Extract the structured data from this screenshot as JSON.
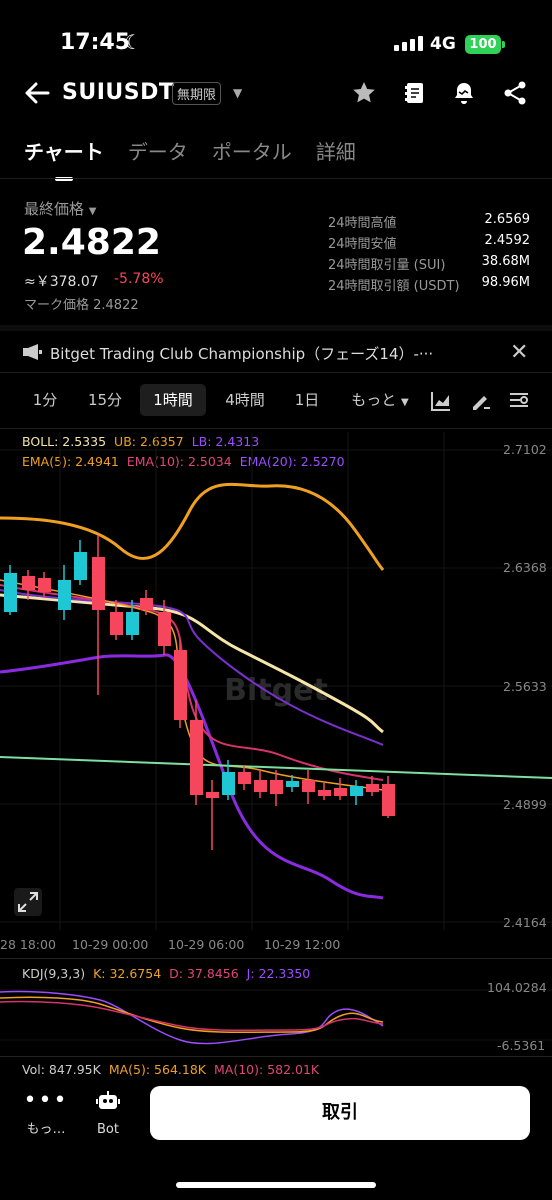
{
  "status": {
    "time": "17:45",
    "network": "4G",
    "battery": "100"
  },
  "header": {
    "symbol": "SUIUSDT",
    "contract_tag": "無期限"
  },
  "tabs": [
    "チャート",
    "データ",
    "ポータル",
    "詳細"
  ],
  "price": {
    "label": "最終価格",
    "last": "2.4822",
    "approx": "≈￥378.07",
    "change": "-5.78%",
    "mark": "マーク価格 2.4822"
  },
  "stats": [
    {
      "k": "24時間高値",
      "v": "2.6569"
    },
    {
      "k": "24時間安値",
      "v": "2.4592"
    },
    {
      "k": "24時間取引量 (SUI)",
      "v": "38.68M"
    },
    {
      "k": "24時間取引額 (USDT)",
      "v": "98.96M"
    }
  ],
  "announcement": "Bitget Trading Club Championship（フェーズ14）-···",
  "intervals": [
    "1分",
    "15分",
    "1時間",
    "4時間",
    "1日",
    "もっと"
  ],
  "active_interval": "1時間",
  "legend": {
    "boll": "BOLL: 2.5335",
    "ub": "UB: 2.6357",
    "lb": "LB: 2.4313",
    "ema5": "EMA(5): 2.4941",
    "ema10": "EMA(10): 2.5034",
    "ema20": "EMA(20): 2.5270",
    "kdj": "KDJ(9,3,3)",
    "k": "K: 32.6754",
    "d": "D: 37.8456",
    "j": "J: 22.3350",
    "vol": "Vol: 847.95K",
    "ma5": "MA(5): 564.18K",
    "ma10": "MA(10): 582.01K"
  },
  "axis": {
    "y": [
      "2.7102",
      "2.6368",
      "2.5633",
      "2.4899",
      "2.4164"
    ],
    "x": [
      "28 18:00",
      "10-29 00:00",
      "10-29 06:00",
      "10-29 12:00"
    ],
    "kdj_y": [
      "104.0284",
      "-6.5361"
    ]
  },
  "watermark": "Bitget",
  "colors": {
    "up": "#1fc7d4",
    "down": "#f6465d",
    "boll_mid": "#f5e6a8",
    "ub": "#f0a020",
    "lb": "#8a2be2",
    "ema10": "#d6336c",
    "trend": "#7ee0a0"
  },
  "bottom": {
    "more": "もっ…",
    "bot": "Bot",
    "trade": "取引"
  }
}
